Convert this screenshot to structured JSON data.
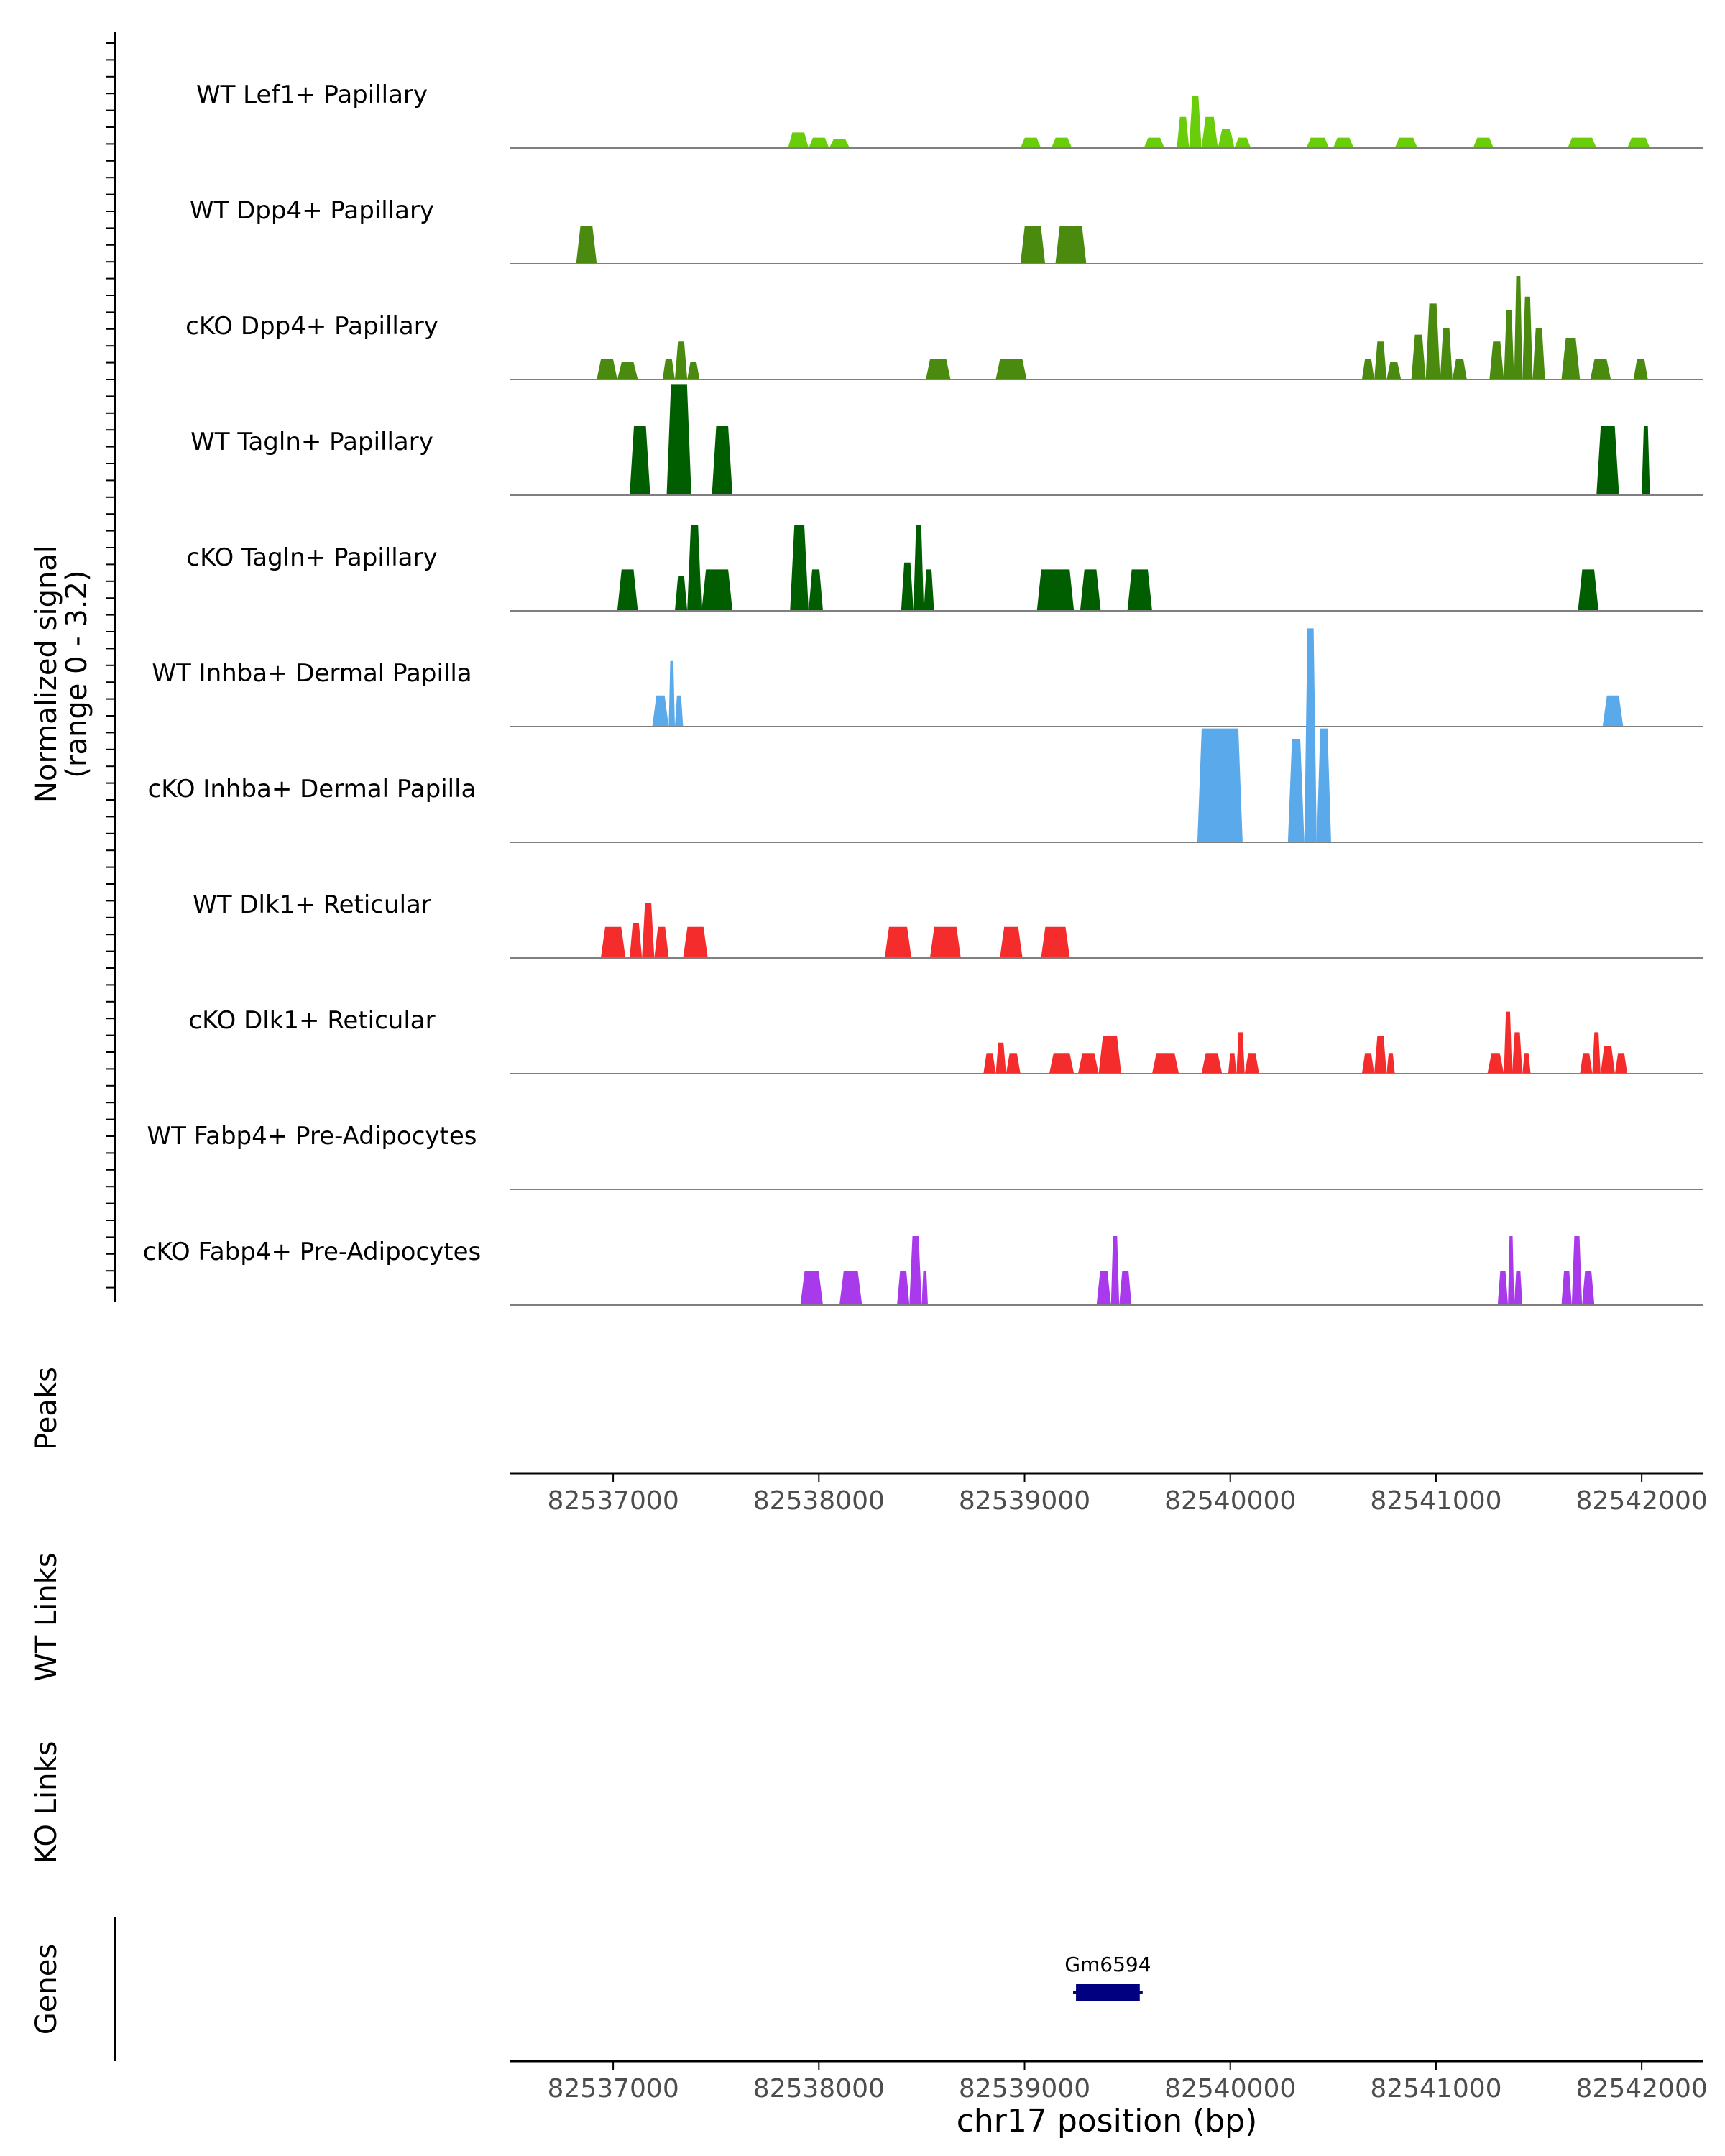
{
  "chart_data": {
    "type": "area",
    "chromosome": "chr17",
    "xlim": [
      82536500,
      82542300
    ],
    "xticks": [
      82537000,
      82538000,
      82539000,
      82540000,
      82541000,
      82542000
    ],
    "tick_labels": [
      "82537000",
      "82538000",
      "82539000",
      "82540000",
      "82541000",
      "82542000"
    ],
    "xlabel": "chr17 position (bp)",
    "ylabel_line1": "Normalized signal",
    "ylabel_line2": "(range 0 - 3.2)",
    "ylim": [
      0,
      3.2
    ],
    "colors": {
      "lef1": "#6ACD0A",
      "dpp4": "#4A8A0F",
      "tagln": "#005D00",
      "inhba": "#5AA9EA",
      "dlk1": "#F42C2C",
      "fabp4": "#A83AEB",
      "gene": "#000080",
      "axis": "#000000",
      "baseline": "#7F7F7F",
      "text": "#000000",
      "tick_text": "#4D4D4D"
    },
    "tracks": [
      {
        "name": "WT Lef1+ Papillary",
        "color": "lef1",
        "peaks": [
          [
            82537850,
            82537950,
            0.45
          ],
          [
            82537950,
            82538050,
            0.3
          ],
          [
            82538050,
            82538150,
            0.25
          ],
          [
            82538980,
            82539080,
            0.3
          ],
          [
            82539130,
            82539230,
            0.3
          ],
          [
            82539580,
            82539680,
            0.3
          ],
          [
            82539740,
            82539800,
            0.9
          ],
          [
            82539800,
            82539860,
            1.5
          ],
          [
            82539860,
            82539940,
            0.9
          ],
          [
            82539940,
            82540020,
            0.55
          ],
          [
            82540020,
            82540100,
            0.3
          ],
          [
            82540370,
            82540480,
            0.3
          ],
          [
            82540500,
            82540600,
            0.3
          ],
          [
            82540800,
            82540910,
            0.3
          ],
          [
            82541180,
            82541280,
            0.3
          ],
          [
            82541640,
            82541780,
            0.3
          ],
          [
            82541930,
            82542040,
            0.3
          ]
        ]
      },
      {
        "name": "WT Dpp4+ Papillary",
        "color": "dpp4",
        "peaks": [
          [
            82536820,
            82536920,
            1.1
          ],
          [
            82538980,
            82539100,
            1.1
          ],
          [
            82539150,
            82539300,
            1.1
          ]
        ]
      },
      {
        "name": "cKO Dpp4+ Papillary",
        "color": "dpp4",
        "peaks": [
          [
            82536920,
            82537020,
            0.6
          ],
          [
            82537020,
            82537120,
            0.5
          ],
          [
            82537240,
            82537300,
            0.6
          ],
          [
            82537300,
            82537360,
            1.1
          ],
          [
            82537360,
            82537420,
            0.5
          ],
          [
            82538520,
            82538640,
            0.6
          ],
          [
            82538860,
            82539010,
            0.6
          ],
          [
            82540640,
            82540700,
            0.6
          ],
          [
            82540700,
            82540760,
            1.1
          ],
          [
            82540760,
            82540830,
            0.5
          ],
          [
            82540880,
            82540950,
            1.3
          ],
          [
            82540950,
            82541020,
            2.2
          ],
          [
            82541020,
            82541080,
            1.5
          ],
          [
            82541080,
            82541150,
            0.6
          ],
          [
            82541260,
            82541330,
            1.1
          ],
          [
            82541330,
            82541380,
            2.0
          ],
          [
            82541380,
            82541420,
            3.0
          ],
          [
            82541420,
            82541470,
            2.4
          ],
          [
            82541470,
            82541530,
            1.5
          ],
          [
            82541610,
            82541700,
            1.2
          ],
          [
            82541750,
            82541850,
            0.6
          ],
          [
            82541960,
            82542030,
            0.6
          ]
        ]
      },
      {
        "name": "WT Tagln+ Papillary",
        "color": "tagln",
        "peaks": [
          [
            82537080,
            82537180,
            2.0
          ],
          [
            82537260,
            82537380,
            3.2
          ],
          [
            82537480,
            82537580,
            2.0
          ],
          [
            82541780,
            82541890,
            2.0
          ],
          [
            82542000,
            82542040,
            2.0
          ]
        ]
      },
      {
        "name": "cKO Tagln+ Papillary",
        "color": "tagln",
        "peaks": [
          [
            82537020,
            82537120,
            1.2
          ],
          [
            82537300,
            82537360,
            1.0
          ],
          [
            82537360,
            82537430,
            2.5
          ],
          [
            82537430,
            82537580,
            1.2
          ],
          [
            82537860,
            82537950,
            2.5
          ],
          [
            82537950,
            82538020,
            1.2
          ],
          [
            82538400,
            82538460,
            1.4
          ],
          [
            82538460,
            82538510,
            2.5
          ],
          [
            82538510,
            82538560,
            1.2
          ],
          [
            82539060,
            82539240,
            1.2
          ],
          [
            82539270,
            82539370,
            1.2
          ],
          [
            82539500,
            82539620,
            1.2
          ],
          [
            82541690,
            82541790,
            1.2
          ]
        ]
      },
      {
        "name": "WT Inhba+ Dermal Papilla",
        "color": "inhba",
        "peaks": [
          [
            82537190,
            82537270,
            0.9
          ],
          [
            82537270,
            82537300,
            1.9
          ],
          [
            82537300,
            82537340,
            0.9
          ],
          [
            82541810,
            82541910,
            0.9
          ]
        ]
      },
      {
        "name": "cKO Inhba+ Dermal Papilla",
        "color": "inhba",
        "peaks": [
          [
            82539840,
            82540060,
            3.3
          ],
          [
            82540280,
            82540360,
            3.0
          ],
          [
            82540360,
            82540420,
            6.2
          ],
          [
            82540420,
            82540490,
            3.3
          ]
        ]
      },
      {
        "name": "WT Dlk1+ Reticular",
        "color": "dlk1",
        "peaks": [
          [
            82536940,
            82537060,
            0.9
          ],
          [
            82537080,
            82537140,
            1.0
          ],
          [
            82537140,
            82537200,
            1.6
          ],
          [
            82537200,
            82537270,
            0.9
          ],
          [
            82537340,
            82537460,
            0.9
          ],
          [
            82538320,
            82538450,
            0.9
          ],
          [
            82538540,
            82538690,
            0.9
          ],
          [
            82538880,
            82538990,
            0.9
          ],
          [
            82539080,
            82539220,
            0.9
          ]
        ]
      },
      {
        "name": "cKO Dlk1+ Reticular",
        "color": "dlk1",
        "peaks": [
          [
            82538800,
            82538860,
            0.6
          ],
          [
            82538860,
            82538910,
            0.9
          ],
          [
            82538910,
            82538980,
            0.6
          ],
          [
            82539120,
            82539240,
            0.6
          ],
          [
            82539260,
            82539360,
            0.6
          ],
          [
            82539360,
            82539470,
            1.1
          ],
          [
            82539620,
            82539750,
            0.6
          ],
          [
            82539860,
            82539960,
            0.6
          ],
          [
            82539990,
            82540030,
            0.6
          ],
          [
            82540030,
            82540070,
            1.2
          ],
          [
            82540070,
            82540140,
            0.6
          ],
          [
            82540640,
            82540700,
            0.6
          ],
          [
            82540700,
            82540760,
            1.1
          ],
          [
            82540760,
            82540800,
            0.6
          ],
          [
            82541250,
            82541330,
            0.6
          ],
          [
            82541330,
            82541370,
            1.8
          ],
          [
            82541370,
            82541420,
            1.2
          ],
          [
            82541420,
            82541460,
            0.6
          ],
          [
            82541700,
            82541760,
            0.6
          ],
          [
            82541760,
            82541800,
            1.2
          ],
          [
            82541800,
            82541870,
            0.8
          ],
          [
            82541870,
            82541930,
            0.6
          ]
        ]
      },
      {
        "name": "WT Fabp4+ Pre-Adipocytes",
        "color": "fabp4",
        "peaks": []
      },
      {
        "name": "cKO Fabp4+ Pre-Adipocytes",
        "color": "fabp4",
        "peaks": [
          [
            82537910,
            82538020,
            1.0
          ],
          [
            82538100,
            82538210,
            1.0
          ],
          [
            82538380,
            82538440,
            1.0
          ],
          [
            82538440,
            82538500,
            2.0
          ],
          [
            82538500,
            82538530,
            1.0
          ],
          [
            82539350,
            82539420,
            1.0
          ],
          [
            82539420,
            82539460,
            2.0
          ],
          [
            82539460,
            82539520,
            1.0
          ],
          [
            82541300,
            82541350,
            1.0
          ],
          [
            82541350,
            82541380,
            2.0
          ],
          [
            82541380,
            82541420,
            1.0
          ],
          [
            82541610,
            82541660,
            1.0
          ],
          [
            82541660,
            82541710,
            2.0
          ],
          [
            82541710,
            82541770,
            1.0
          ]
        ]
      }
    ],
    "panels": {
      "peaks_label": "Peaks",
      "wt_links_label": "WT Links",
      "ko_links_label": "KO Links",
      "genes_label": "Genes"
    },
    "genes": [
      {
        "name": "Gm6594",
        "start": 82539250,
        "end": 82539560,
        "strand": "-"
      }
    ]
  }
}
